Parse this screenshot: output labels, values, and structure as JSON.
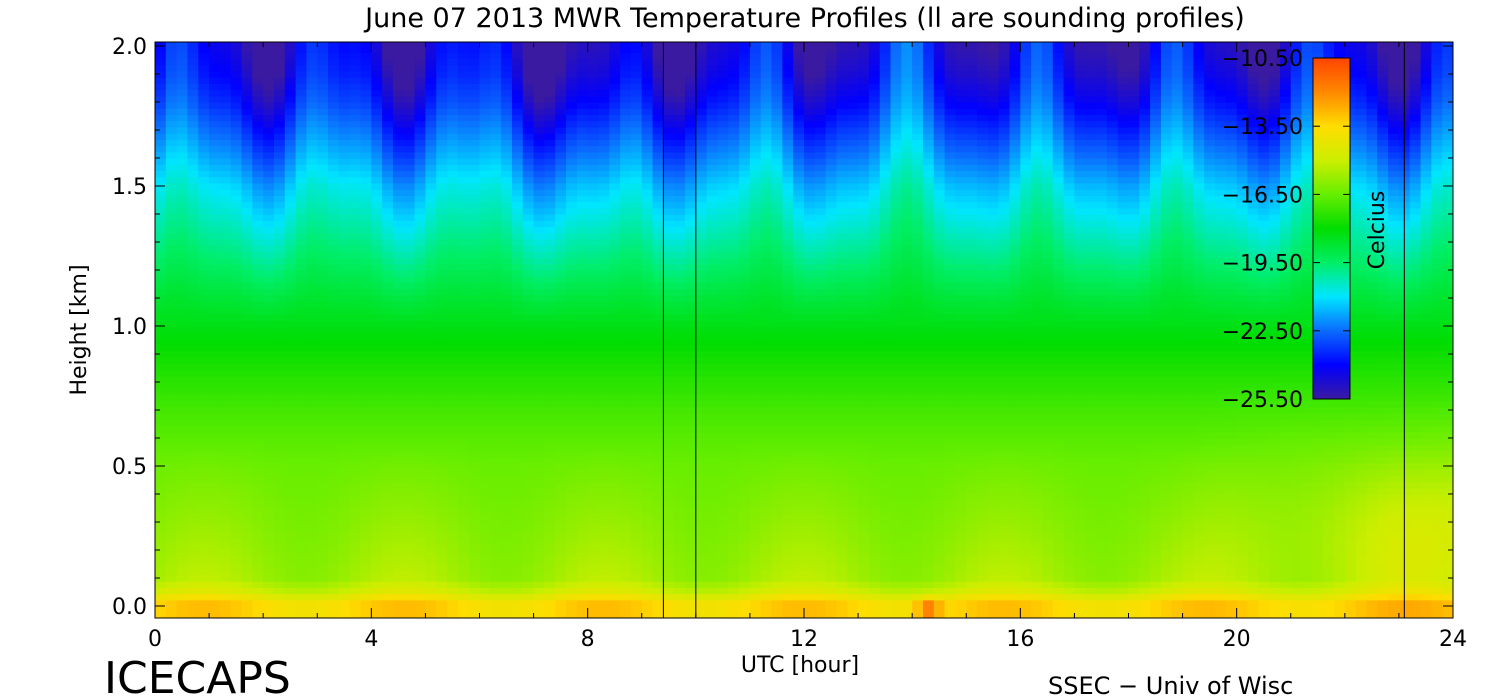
{
  "chart_data": {
    "type": "heatmap",
    "title": "June 07 2013 MWR Temperature Profiles (ll are sounding profiles)",
    "xlabel": "UTC [hour]",
    "ylabel": "Height [km]",
    "xlim": [
      0,
      24
    ],
    "ylim": [
      0,
      2.0
    ],
    "x_ticks": [
      0,
      4,
      8,
      12,
      16,
      20,
      24
    ],
    "x_tick_labels": [
      "0",
      "4",
      "8",
      "12",
      "16",
      "20",
      "24"
    ],
    "y_ticks": [
      0.0,
      0.5,
      1.0,
      1.5,
      2.0
    ],
    "y_tick_labels": [
      "0.0",
      "0.5",
      "1.0",
      "1.5",
      "2.0"
    ],
    "colorbar": {
      "label": "Celcius",
      "min": -25.5,
      "max": -10.5,
      "ticks": [
        -10.5,
        -13.5,
        -16.5,
        -19.5,
        -22.5,
        -25.5
      ],
      "tick_labels": [
        "−10.50",
        "−13.50",
        "−16.50",
        "−19.50",
        "−22.50",
        "−25.50"
      ],
      "colormap": [
        "#3a1aa0",
        "#0000ff",
        "#0a6cff",
        "#00e6ff",
        "#00ee66",
        "#00dd00",
        "#66ee00",
        "#ccee00",
        "#ffdd00",
        "#ff8800",
        "#ff4400"
      ],
      "placement": "inside-top-right"
    },
    "sounding_profiles_utc": [
      9.4,
      10.0,
      23.1
    ],
    "heights_km": [
      0.0,
      0.05,
      0.1,
      0.2,
      0.3,
      0.5,
      0.7,
      0.9,
      1.1,
      1.3,
      1.4,
      1.5,
      1.6,
      1.7,
      1.8,
      1.9,
      2.0
    ],
    "temperature_profile_c": [
      -13.0,
      -14.8,
      -15.6,
      -15.8,
      -16.0,
      -16.4,
      -17.0,
      -17.8,
      -18.8,
      -20.0,
      -20.6,
      -21.2,
      -22.0,
      -22.8,
      -23.6,
      -24.2,
      -24.6
    ],
    "surface_warm_spot": {
      "utc": 14.3,
      "temperature_c": -10.8
    }
  },
  "footer": {
    "left_label": "ICECAPS",
    "right_label": "SSEC − Univ of Wisc"
  }
}
